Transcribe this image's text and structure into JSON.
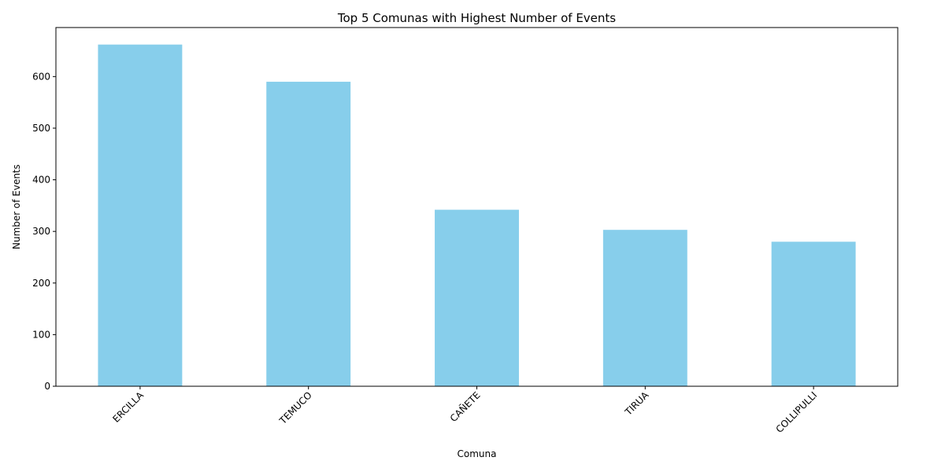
{
  "chart_data": {
    "type": "bar",
    "title": "Top 5 Comunas with Highest Number of Events",
    "xlabel": "Comuna",
    "ylabel": "Number of Events",
    "categories": [
      "ERCILLA",
      "TEMUCO",
      "CAÑETE",
      "TIRUA",
      "COLLIPULLI"
    ],
    "values": [
      662,
      590,
      342,
      303,
      280
    ],
    "ylim": [
      0,
      695
    ],
    "yticks": [
      0,
      100,
      200,
      300,
      400,
      500,
      600
    ],
    "grid": false,
    "legend": "none",
    "bar_color": "#87CEEB",
    "xtick_rotation": 45
  }
}
